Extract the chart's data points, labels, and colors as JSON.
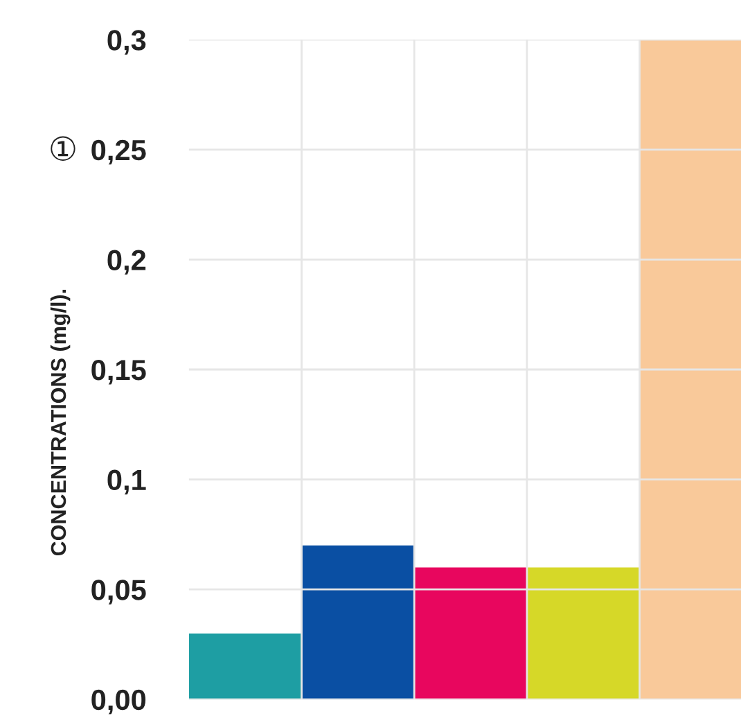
{
  "chart_data": {
    "type": "bar",
    "ylabel": "CONCENTRATIONS (mg/l).",
    "annotations": [
      "①"
    ],
    "categories": [
      null,
      null,
      null,
      null,
      null
    ],
    "values": [
      0.03,
      0.07,
      0.06,
      0.06,
      0.3
    ],
    "colors": [
      "#1e9ea3",
      "#0a4fa3",
      "#e8065e",
      "#d6d828",
      "#f9c99a"
    ],
    "ylim": [
      0,
      0.3
    ],
    "yticks": [
      {
        "value": 0,
        "label": "0,00"
      },
      {
        "value": 0.05,
        "label": "0,05"
      },
      {
        "value": 0.1,
        "label": "0,1"
      },
      {
        "value": 0.15,
        "label": "0,15"
      },
      {
        "value": 0.2,
        "label": "0,2"
      },
      {
        "value": 0.25,
        "label": "0,25"
      },
      {
        "value": 0.3,
        "label": "0,3"
      }
    ],
    "grid": true
  }
}
